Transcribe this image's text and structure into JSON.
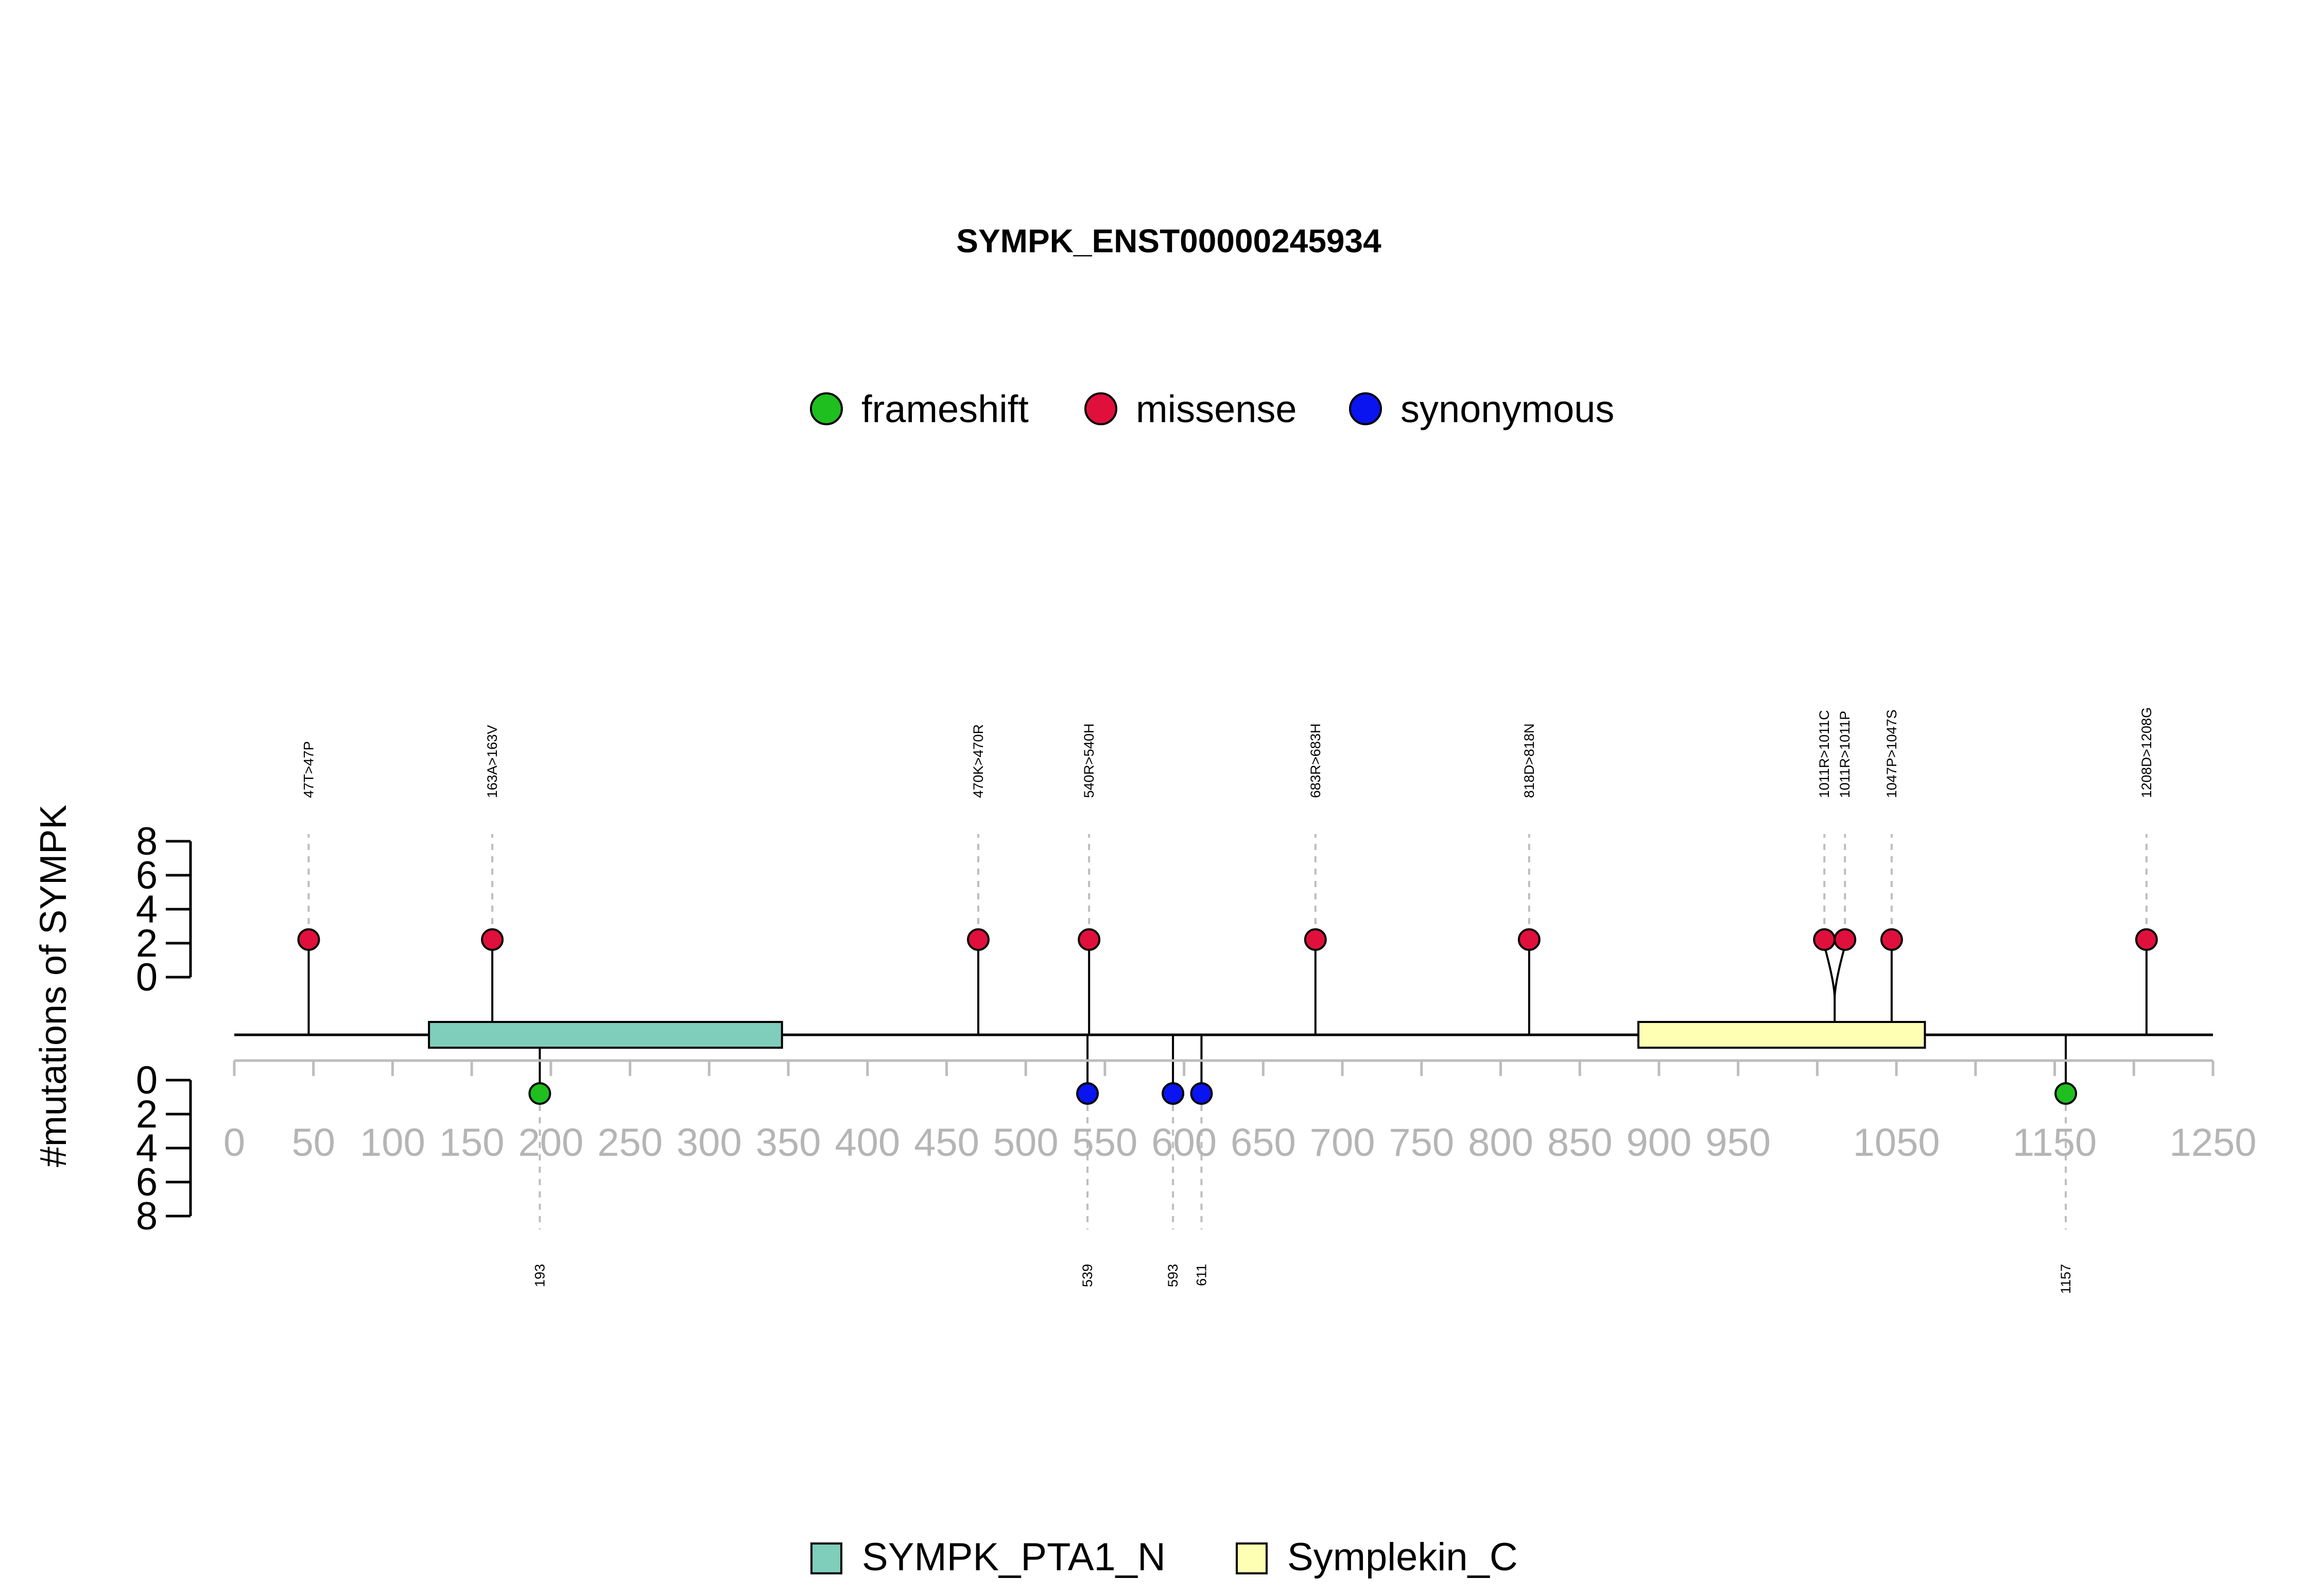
{
  "chart_data": {
    "type": "lollipop",
    "title": "SYMPK_ENST00000245934",
    "ylabel": "#mutations of SYMPK",
    "xlim": [
      0,
      1250
    ],
    "ylim": [
      0,
      8
    ],
    "x_ticks": [
      0,
      50,
      100,
      150,
      200,
      250,
      300,
      350,
      400,
      450,
      500,
      550,
      600,
      650,
      700,
      750,
      800,
      850,
      900,
      950,
      1000,
      1050,
      1100,
      1150,
      1200,
      1250
    ],
    "x_tick_labels": [
      "0",
      "50",
      "100",
      "150",
      "200",
      "250",
      "300",
      "350",
      "400",
      "450",
      "500",
      "550",
      "600",
      "650",
      "700",
      "750",
      "800",
      "850",
      "900",
      "950",
      "",
      "1050",
      "",
      "1150",
      "",
      "1250"
    ],
    "y_ticks": [
      0,
      2,
      4,
      6,
      8
    ],
    "mutation_types": [
      {
        "name": "frameshift",
        "color": "#1fbf1f"
      },
      {
        "name": "missense",
        "color": "#e0103c"
      },
      {
        "name": "synonymous",
        "color": "#0a14f0"
      }
    ],
    "domains": [
      {
        "name": "SYMPK_PTA1_N",
        "start": 123,
        "end": 346,
        "color": "#7fcdbb"
      },
      {
        "name": "Symplekin_C",
        "start": 887,
        "end": 1068,
        "color": "#ffffb3"
      }
    ],
    "upper_mutations": [
      {
        "position": 47,
        "count": 1,
        "type": "missense",
        "label": "47T>47P"
      },
      {
        "position": 163,
        "count": 1,
        "type": "missense",
        "label": "163A>163V"
      },
      {
        "position": 470,
        "count": 1,
        "type": "missense",
        "label": "470K>470R"
      },
      {
        "position": 540,
        "count": 1,
        "type": "missense",
        "label": "540R>540H"
      },
      {
        "position": 683,
        "count": 1,
        "type": "missense",
        "label": "683R>683H"
      },
      {
        "position": 818,
        "count": 1,
        "type": "missense",
        "label": "818D>818N"
      },
      {
        "position": 1011,
        "count": 1,
        "type": "missense",
        "label": "1011R>1011C"
      },
      {
        "position": 1011,
        "count": 1,
        "type": "missense",
        "label": "1011R>1011P"
      },
      {
        "position": 1047,
        "count": 1,
        "type": "missense",
        "label": "1047P>1047S"
      },
      {
        "position": 1208,
        "count": 1,
        "type": "missense",
        "label": "1208D>1208G"
      }
    ],
    "lower_mutations": [
      {
        "position": 193,
        "count": 1,
        "type": "frameshift",
        "label": "193"
      },
      {
        "position": 539,
        "count": 1,
        "type": "synonymous",
        "label": "539"
      },
      {
        "position": 593,
        "count": 1,
        "type": "synonymous",
        "label": "593"
      },
      {
        "position": 611,
        "count": 1,
        "type": "synonymous",
        "label": "611"
      },
      {
        "position": 1157,
        "count": 1,
        "type": "frameshift",
        "label": "1157"
      }
    ]
  }
}
